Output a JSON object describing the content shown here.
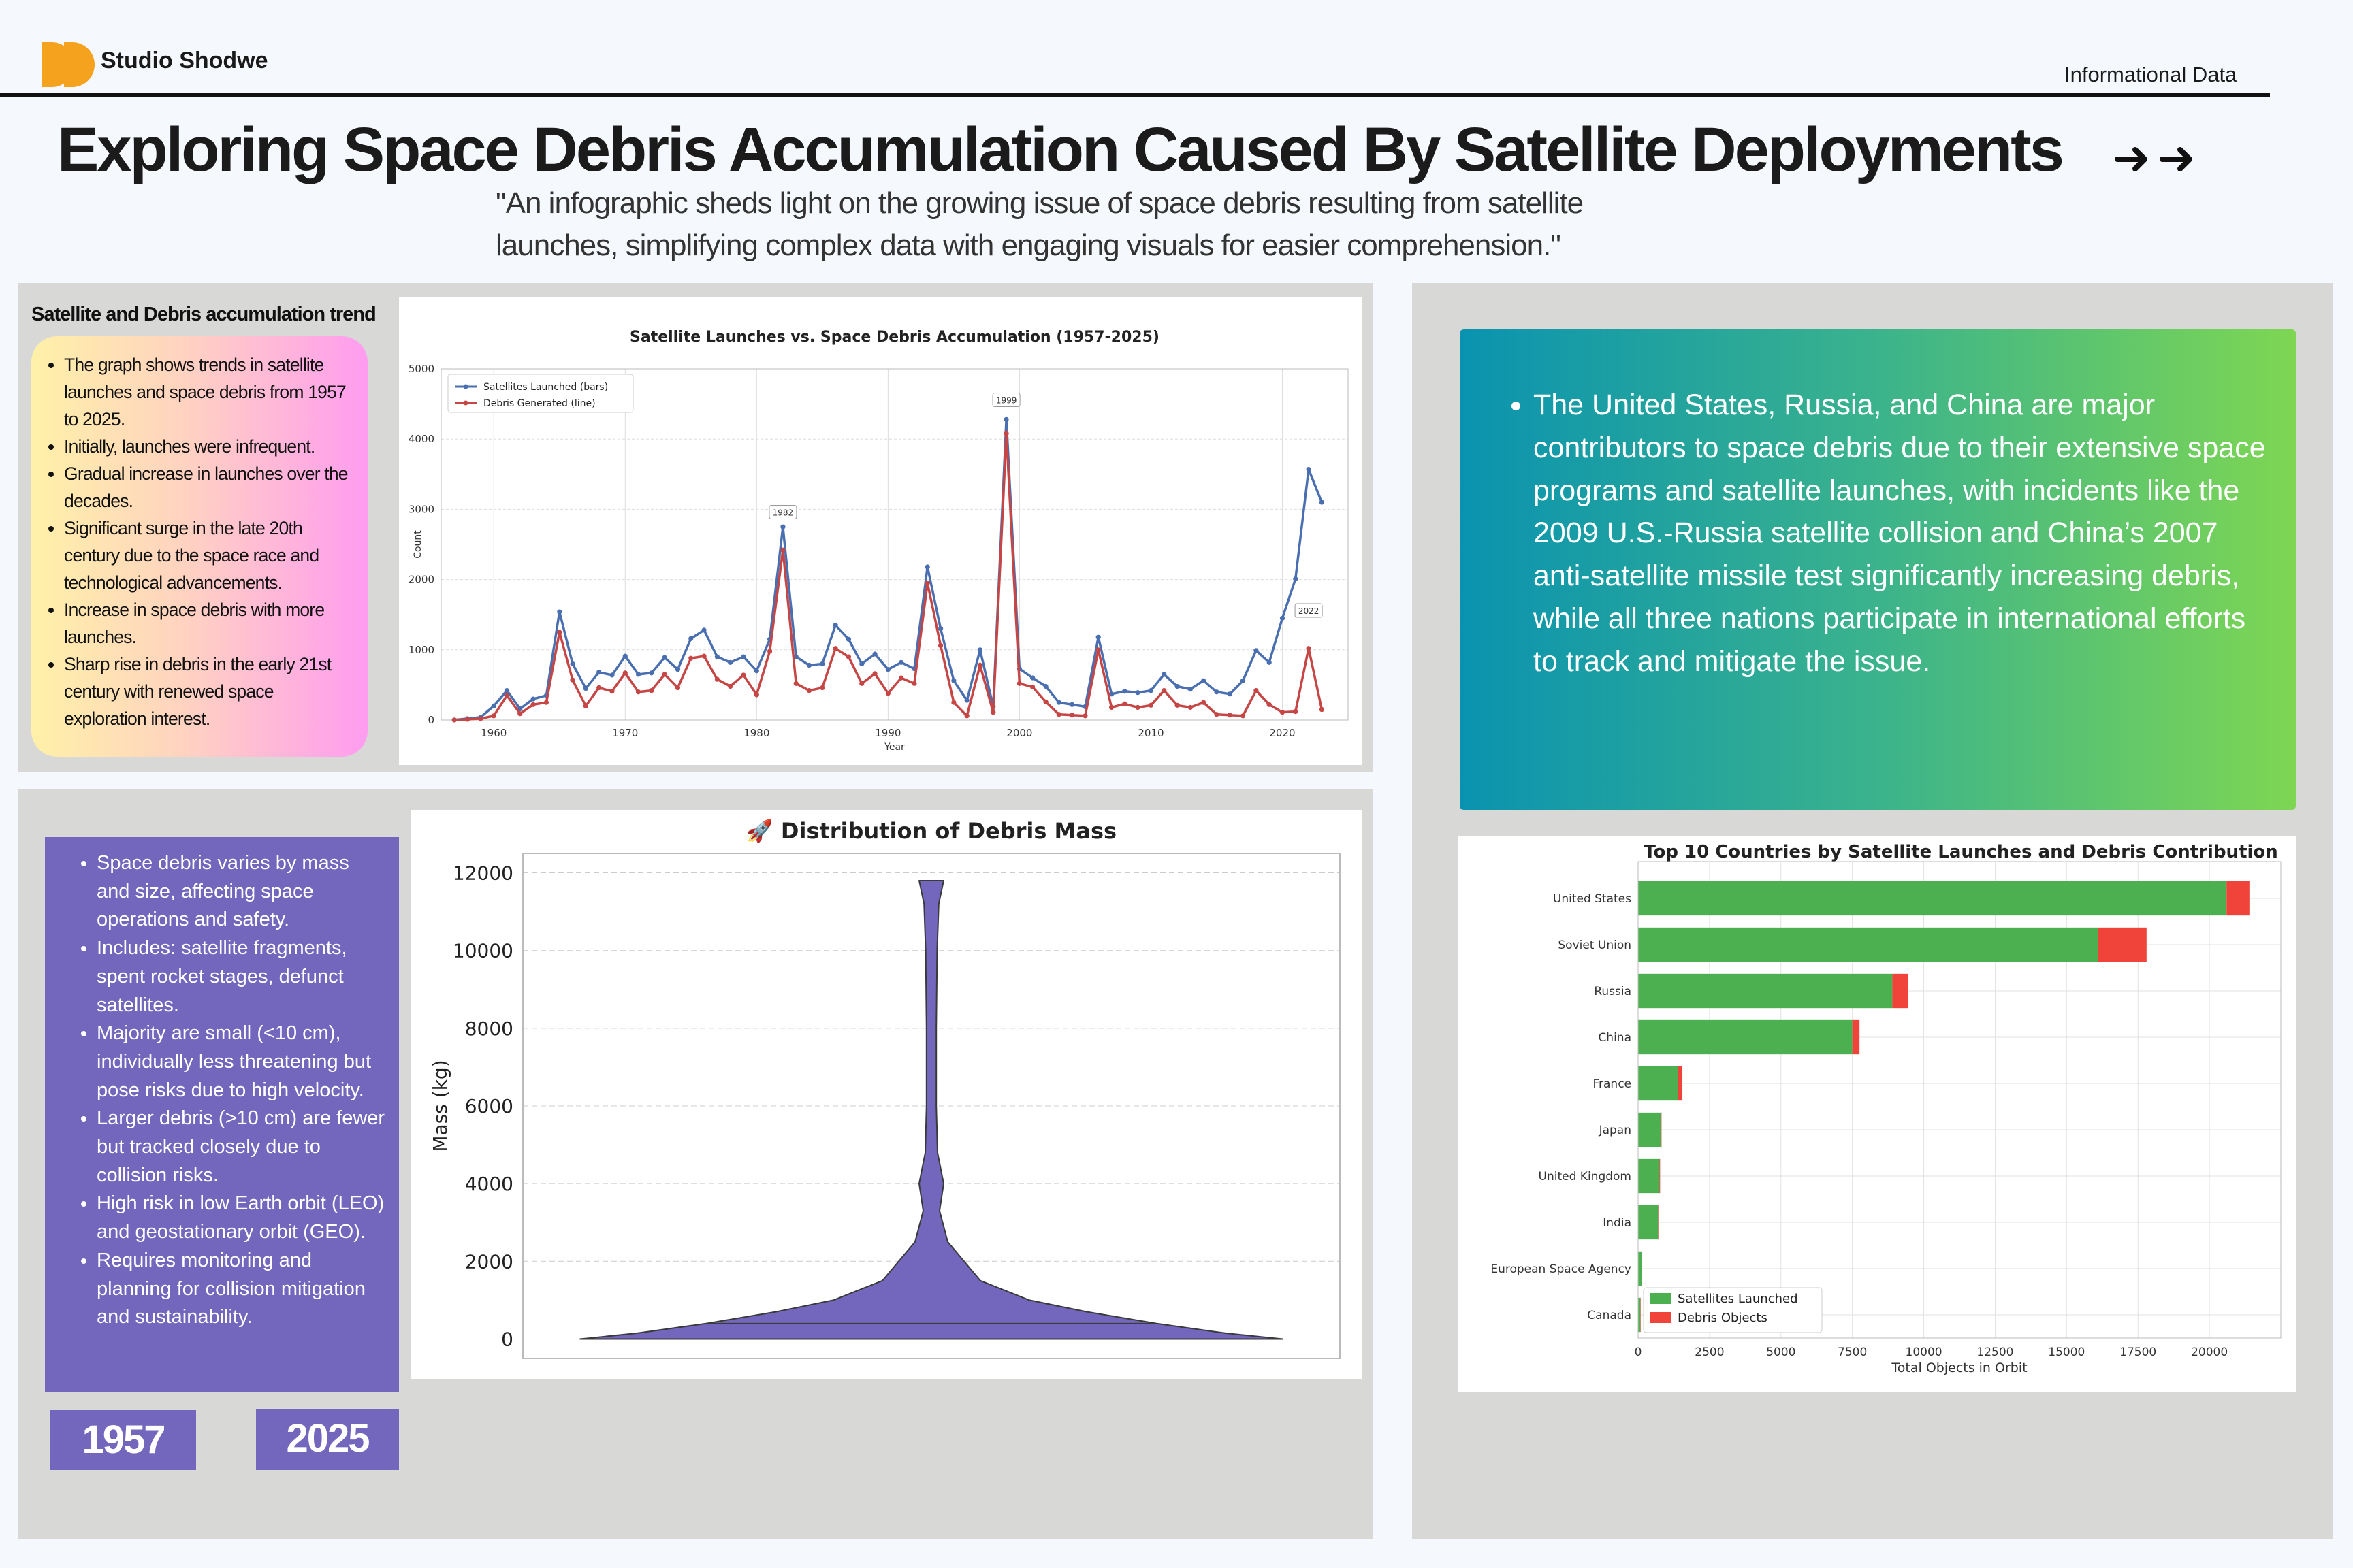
{
  "header": {
    "brand": "Studio Shodwe",
    "tag": "Informational Data",
    "title": "Exploring Space Debris Accumulation Caused By Satellite Deployments",
    "subtitle_line1": "\"An infographic sheds light on the growing issue of space debris resulting from satellite",
    "subtitle_line2": "launches, simplifying complex data with engaging visuals for easier comprehension.\"",
    "colors": {
      "logo": "#f5a21e",
      "accent_purple": "#7366bd",
      "panel": "#d8d8d6"
    }
  },
  "trend_section": {
    "title": "Satellite and Debris accumulation trend",
    "bullets": [
      "The graph shows trends in satellite launches and space debris from 1957 to 2025.",
      "Initially, launches were infrequent.",
      "Gradual increase in launches over the decades.",
      "Significant surge in the late 20th century due to the space race and technological advancements.",
      "Increase in space debris with more launches.",
      "Sharp rise in debris in the early 21st century with renewed space exploration interest."
    ]
  },
  "mass_section": {
    "bullets": [
      "Space debris varies by mass and size, affecting space operations and safety.",
      "Includes: satellite fragments, spent rocket stages, defunct satellites.",
      "Majority are small (<10 cm), individually less threatening but pose risks due to high velocity.",
      "Larger debris (>10 cm) are fewer but tracked closely due to collision risks.",
      "High risk in low Earth orbit (LEO) and geostationary orbit (GEO).",
      "Requires monitoring and planning for collision mitigation and sustainability."
    ],
    "year_start": "1957",
    "year_end": "2025"
  },
  "countries_note": {
    "text": "The United States, Russia, and China are major contributors to space debris due to their extensive space programs and satellite launches, with incidents like the 2009 U.S.-Russia satellite collision and China’s 2007 anti-satellite missile test significantly increasing debris, while all three nations participate in international efforts to track and mitigate the issue."
  },
  "chart_data": [
    {
      "type": "line",
      "title": "Satellite Launches vs. Space Debris Accumulation (1957-2025)",
      "xlabel": "Year",
      "ylabel": "Count",
      "xlim": [
        1956,
        2025
      ],
      "ylim": [
        0,
        5000
      ],
      "xticks": [
        1960,
        1970,
        1980,
        1990,
        2000,
        2010,
        2020
      ],
      "yticks": [
        0,
        1000,
        2000,
        3000,
        4000,
        5000
      ],
      "grid": true,
      "legend": "top-left",
      "annotations": [
        {
          "label": "1982",
          "x": 1982,
          "y": 2950
        },
        {
          "label": "1999",
          "x": 1999,
          "y": 4550
        },
        {
          "label": "2022",
          "x": 2022,
          "y": 1550
        }
      ],
      "x": [
        1957,
        1958,
        1959,
        1960,
        1961,
        1962,
        1963,
        1964,
        1965,
        1966,
        1967,
        1968,
        1969,
        1970,
        1971,
        1972,
        1973,
        1974,
        1975,
        1976,
        1977,
        1978,
        1979,
        1980,
        1981,
        1982,
        1983,
        1984,
        1985,
        1986,
        1987,
        1988,
        1989,
        1990,
        1991,
        1992,
        1993,
        1994,
        1995,
        1996,
        1997,
        1998,
        1999,
        2000,
        2001,
        2002,
        2003,
        2004,
        2005,
        2006,
        2007,
        2008,
        2009,
        2010,
        2011,
        2012,
        2013,
        2014,
        2015,
        2016,
        2017,
        2018,
        2019,
        2020,
        2021,
        2022,
        2023
      ],
      "series": [
        {
          "name": "Satellites Launched (bars)",
          "color": "#4a6fb0",
          "values": [
            2,
            20,
            40,
            200,
            420,
            160,
            300,
            350,
            1540,
            800,
            450,
            680,
            640,
            910,
            650,
            670,
            890,
            720,
            1160,
            1280,
            900,
            820,
            900,
            700,
            1150,
            2750,
            900,
            780,
            800,
            1350,
            1150,
            800,
            940,
            720,
            820,
            730,
            2180,
            1300,
            560,
            280,
            1000,
            190,
            4280,
            730,
            600,
            480,
            250,
            220,
            190,
            1180,
            370,
            410,
            390,
            420,
            650,
            480,
            440,
            560,
            400,
            370,
            560,
            990,
            820,
            1450,
            2010,
            3570,
            3100
          ]
        },
        {
          "name": "Debris Generated (line)",
          "color": "#c64545",
          "values": [
            0,
            10,
            20,
            60,
            350,
            90,
            220,
            250,
            1250,
            570,
            200,
            460,
            410,
            670,
            400,
            420,
            650,
            460,
            880,
            910,
            580,
            480,
            640,
            360,
            980,
            2420,
            520,
            420,
            460,
            1020,
            900,
            520,
            660,
            380,
            600,
            520,
            1950,
            1060,
            250,
            60,
            780,
            110,
            4080,
            520,
            470,
            260,
            80,
            70,
            60,
            1000,
            180,
            230,
            180,
            210,
            420,
            210,
            180,
            250,
            80,
            70,
            60,
            420,
            220,
            110,
            120,
            1020,
            150
          ]
        }
      ]
    },
    {
      "type": "violin",
      "title": "🚀 Distribution of Debris Mass",
      "xlabel": "",
      "ylabel": "Mass (kg)",
      "ylim": [
        -500,
        12500
      ],
      "yticks": [
        0,
        2000,
        4000,
        6000,
        8000,
        10000,
        12000
      ],
      "grid": true,
      "color": "#7366bd",
      "profile_mass": [
        0,
        150,
        400,
        700,
        1000,
        1500,
        2500,
        3300,
        4000,
        4800,
        6000,
        8000,
        10000,
        11200,
        11800
      ],
      "profile_width": [
        0.86,
        0.72,
        0.55,
        0.38,
        0.24,
        0.12,
        0.04,
        0.02,
        0.03,
        0.015,
        0.012,
        0.012,
        0.014,
        0.018,
        0.03
      ],
      "median": 400
    },
    {
      "type": "bar",
      "orientation": "horizontal",
      "stacked": true,
      "title": "Top 10 Countries by Satellite Launches and Debris Contribution",
      "xlabel": "Total Objects in Orbit",
      "ylabel": "",
      "xlim": [
        0,
        22500
      ],
      "xticks": [
        0,
        2500,
        5000,
        7500,
        10000,
        12500,
        15000,
        17500,
        20000
      ],
      "grid": true,
      "legend": "bottom-left",
      "categories": [
        "United States",
        "Soviet Union",
        "Russia",
        "China",
        "France",
        "Japan",
        "United Kingdom",
        "India",
        "European Space Agency",
        "Canada"
      ],
      "series": [
        {
          "name": "Satellites Launched",
          "color": "#4caf50",
          "values": [
            20600,
            16100,
            8900,
            7500,
            1400,
            800,
            750,
            700,
            120,
            80
          ]
        },
        {
          "name": "Debris Objects",
          "color": "#f0433a",
          "values": [
            800,
            1700,
            550,
            250,
            150,
            20,
            20,
            10,
            10,
            5
          ]
        }
      ]
    }
  ]
}
